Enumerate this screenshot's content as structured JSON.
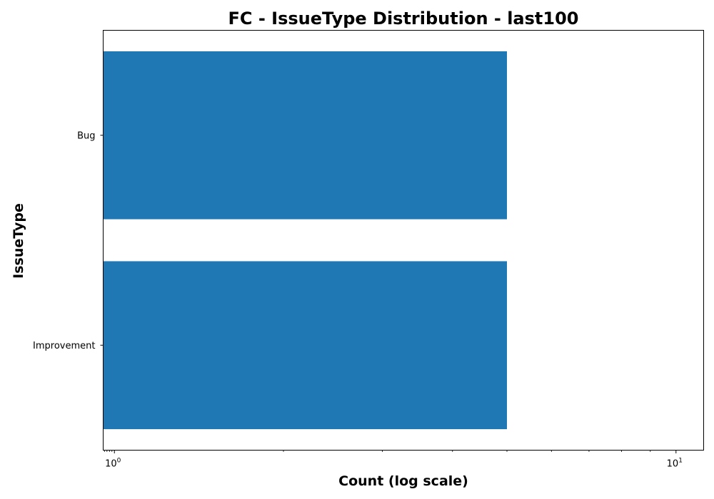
{
  "chart_data": {
    "type": "bar",
    "orientation": "horizontal",
    "title": "FC - IssueType Distribution - last100",
    "xlabel": "Count (log scale)",
    "ylabel": "IssueType",
    "xscale": "log",
    "xlim": [
      0.955,
      11.2
    ],
    "x_ticks": [
      {
        "value": 1,
        "base": "10",
        "exp": "0"
      },
      {
        "value": 10,
        "base": "10",
        "exp": "1"
      }
    ],
    "categories": [
      "Bug",
      "Improvement"
    ],
    "values": [
      5,
      5
    ],
    "bar_color": "#1f77b4",
    "grid": false,
    "legend": "none"
  }
}
